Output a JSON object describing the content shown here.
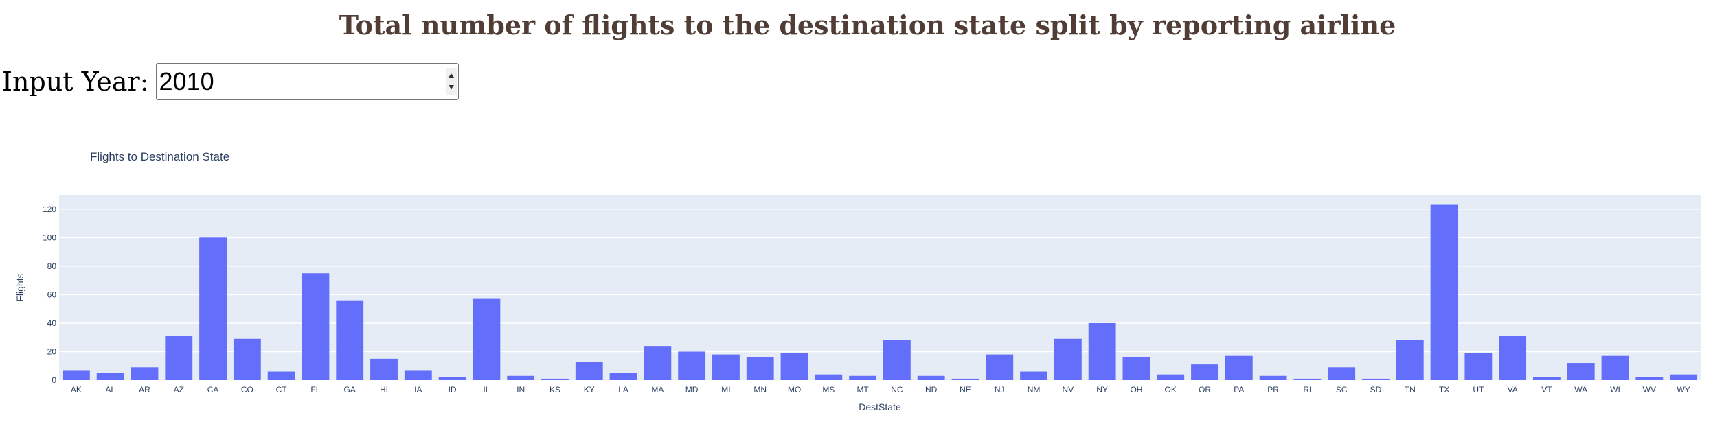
{
  "header": {
    "title": "Total number of flights to the destination state split by reporting airline"
  },
  "year_input": {
    "label": "Input Year:",
    "value": "2010"
  },
  "colors": {
    "title": "#503d36",
    "bar": "#636efa",
    "plot_bg": "#e5ecf6",
    "grid": "#ffffff",
    "axis_text": "#2a3f5f"
  },
  "chart_data": {
    "type": "bar",
    "title": "Flights to Destination State",
    "xlabel": "DestState",
    "ylabel": "Flights",
    "ylim": [
      0,
      130
    ],
    "yticks": [
      0,
      20,
      40,
      60,
      80,
      100,
      120
    ],
    "grid": true,
    "categories": [
      "AK",
      "AL",
      "AR",
      "AZ",
      "CA",
      "CO",
      "CT",
      "FL",
      "GA",
      "HI",
      "IA",
      "ID",
      "IL",
      "IN",
      "KS",
      "KY",
      "LA",
      "MA",
      "MD",
      "MI",
      "MN",
      "MO",
      "MS",
      "MT",
      "NC",
      "ND",
      "NE",
      "NJ",
      "NM",
      "NV",
      "NY",
      "OH",
      "OK",
      "OR",
      "PA",
      "PR",
      "RI",
      "SC",
      "SD",
      "TN",
      "TX",
      "UT",
      "VA",
      "VT",
      "WA",
      "WI",
      "WV",
      "WY"
    ],
    "values": [
      7,
      5,
      9,
      31,
      100,
      29,
      6,
      75,
      56,
      15,
      7,
      2,
      57,
      3,
      1,
      13,
      5,
      24,
      20,
      18,
      16,
      19,
      4,
      3,
      28,
      3,
      1,
      18,
      6,
      29,
      40,
      16,
      4,
      11,
      17,
      3,
      1,
      9,
      1,
      28,
      123,
      19,
      31,
      2,
      12,
      17,
      2,
      4
    ]
  }
}
